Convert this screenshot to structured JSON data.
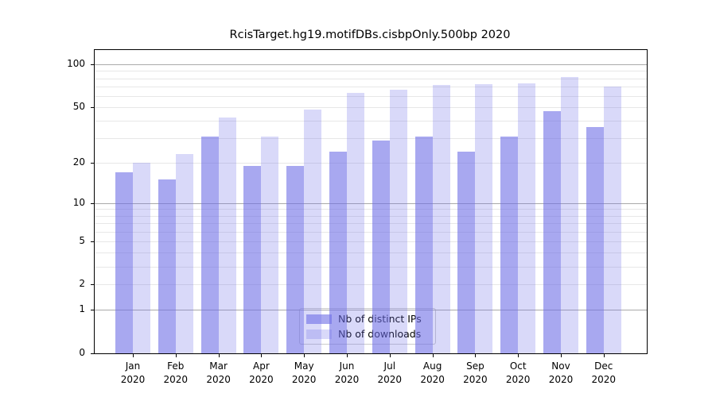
{
  "chart_data": {
    "type": "bar",
    "title": "RcisTarget.hg19.motifDBs.cisbpOnly.500bp 2020",
    "year": "2020",
    "months": [
      "Jan",
      "Feb",
      "Mar",
      "Apr",
      "May",
      "Jun",
      "Jul",
      "Aug",
      "Sep",
      "Oct",
      "Nov",
      "Dec"
    ],
    "series": [
      {
        "name": "Nb of distinct IPs",
        "color": "rgba(110,110,230,0.60)",
        "values": [
          17,
          15,
          31,
          19,
          19,
          24,
          29,
          31,
          24,
          31,
          47,
          36
        ]
      },
      {
        "name": "Nb of downloads",
        "color": "rgba(110,110,230,0.26)",
        "values": [
          20,
          23,
          42,
          31,
          48,
          63,
          66,
          72,
          73,
          74,
          82,
          70
        ]
      }
    ],
    "yscale": "log1p",
    "ylim": [
      0,
      126
    ],
    "yticks": [
      100,
      50,
      20,
      10,
      5,
      2,
      1,
      0
    ],
    "grid": {
      "major_at": [
        1,
        10,
        100
      ],
      "minor_at": [
        2,
        3,
        4,
        5,
        6,
        7,
        8,
        9,
        20,
        30,
        40,
        50,
        60,
        70,
        80,
        90
      ],
      "major_color": "#aaaaaa",
      "minor_color": "#e7e7e7"
    },
    "legend_position": "lower center",
    "grid_on": true
  }
}
